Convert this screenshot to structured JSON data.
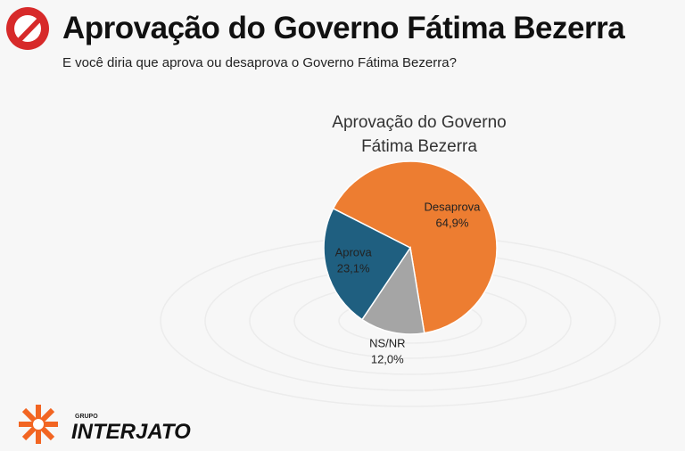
{
  "title": "Aprovação do Governo Fátima Bezerra",
  "subtitle": "E você diria que aprova ou desaprova o Governo Fátima Bezerra?",
  "chart_data": {
    "type": "pie",
    "title": "Aprovação do Governo Fátima Bezerra",
    "categories": [
      "Desaprova",
      "NS/NR",
      "Aprova"
    ],
    "values": [
      64.9,
      12.0,
      23.1
    ],
    "value_labels": [
      "64,9%",
      "12,0%",
      "23,1%"
    ],
    "colors": [
      "#ed7d31",
      "#a5a5a5",
      "#1f5f80"
    ]
  },
  "logo": {
    "group": "GRUPO",
    "name": "INTERJATO"
  }
}
